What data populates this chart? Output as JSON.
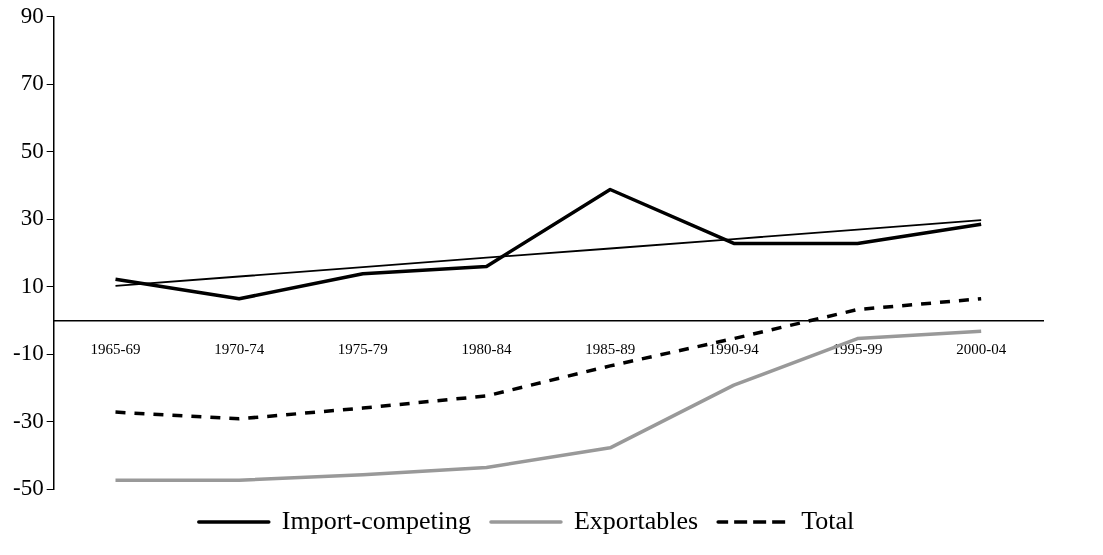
{
  "chart_data": {
    "type": "line",
    "categories": [
      "1965-69",
      "1970-74",
      "1975-79",
      "1980-84",
      "1985-89",
      "1990-94",
      "1995-99",
      "2000-04"
    ],
    "series": [
      {
        "name": "Import-competing",
        "color": "#000000",
        "values": [
          12.2,
          6.4,
          13.8,
          16,
          38.8,
          22.8,
          22.8,
          28.5
        ],
        "line_style": "solid"
      },
      {
        "name": "Exportables",
        "color": "#999999",
        "values": [
          -47.4,
          -47.4,
          -45.8,
          -43.6,
          -37.8,
          -19.2,
          -5.4,
          -3.2
        ],
        "line_style": "solid"
      },
      {
        "name": "Total",
        "color": "#000000",
        "values": [
          -27.2,
          -29.2,
          -26,
          -22.4,
          -13.5,
          -5.4,
          3.2,
          6.4
        ],
        "line_style": "dashed"
      },
      {
        "type": "line",
        "color": "#000000",
        "values": [
          10.2,
          13,
          15.8,
          18.6,
          21.3,
          24.1,
          26.9,
          29.7
        ],
        "line_style": "solid"
      }
    ],
    "ylim": [
      -50,
      90
    ],
    "yticks": [
      -50,
      -30,
      -10,
      10,
      30,
      50,
      70,
      90
    ],
    "grid": false,
    "legend": "bottom",
    "marker": "none"
  }
}
